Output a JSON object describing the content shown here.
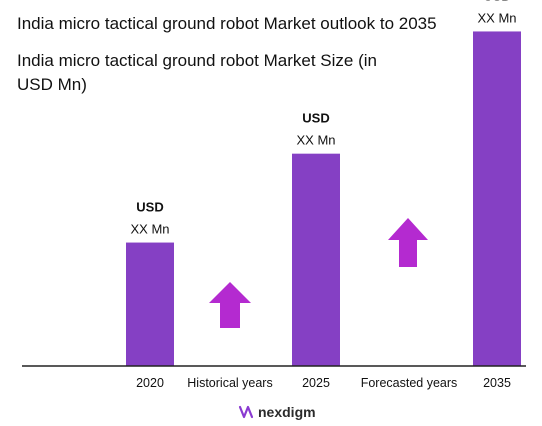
{
  "title": "India micro tactical ground robot Market outlook to 2035",
  "subtitle_line1": "India micro tactical ground robot Market Size (in",
  "subtitle_line2": "USD Mn)",
  "brand": "nexdigm",
  "colors": {
    "bar": "#8540c4",
    "arrow": "#b42ad0",
    "axis": "#222222",
    "logo": "#8a3bd1"
  },
  "chart_data": {
    "type": "bar",
    "categories": [
      "2020",
      "2025",
      "2035"
    ],
    "values": [
      1.0,
      1.72,
      2.71
    ],
    "value_labels": [
      {
        "currency": "USD",
        "amount": "XX Mn"
      },
      {
        "currency": "USD",
        "amount": "XX Mn"
      },
      {
        "currency": "USD",
        "amount": "XX Mn"
      }
    ],
    "period_labels": [
      "Historical years",
      "Forecasted years"
    ],
    "ylim": [
      0,
      2.8
    ],
    "grid": false,
    "legend": "none"
  }
}
